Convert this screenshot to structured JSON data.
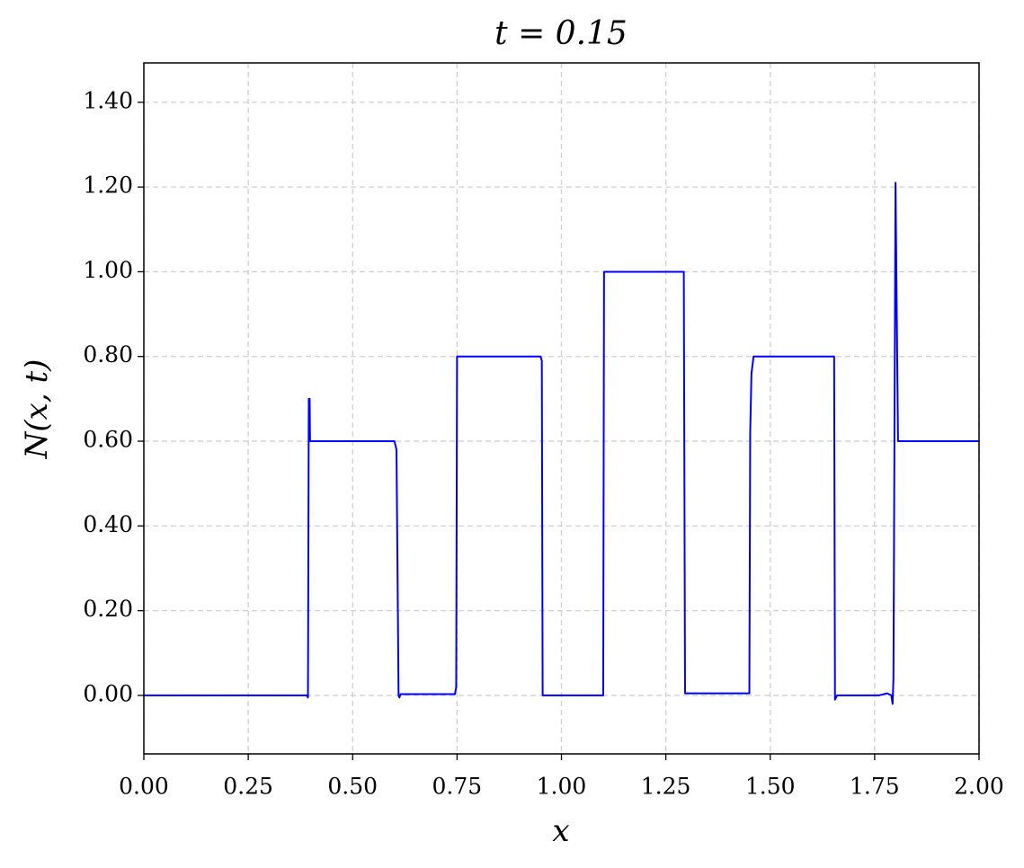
{
  "chart_data": {
    "type": "line",
    "title": "t = 0.15",
    "x_label": "x",
    "y_label": "N(x, t)",
    "x": [
      0,
      0.39,
      0.393,
      0.395,
      0.397,
      0.398,
      0.6,
      0.605,
      0.61,
      0.612,
      0.615,
      0.745,
      0.748,
      0.75,
      0.755,
      0.95,
      0.953,
      0.955,
      1.1,
      1.102,
      1.29,
      1.293,
      1.296,
      1.45,
      1.452,
      1.455,
      1.46,
      1.65,
      1.653,
      1.655,
      1.66,
      1.76,
      1.78,
      1.79,
      1.793,
      1.795,
      1.8,
      1.803,
      1.806,
      2.0
    ],
    "series": [
      {
        "name": "N",
        "color": "#0000ff",
        "values": [
          0,
          0,
          -0.005,
          0.7,
          0.7,
          0.6,
          0.6,
          0.58,
          0.0,
          -0.005,
          0.003,
          0.003,
          0.02,
          0.8,
          0.8,
          0.8,
          0.79,
          0.0,
          0.0,
          1.0,
          1.0,
          1.0,
          0.005,
          0.005,
          0.62,
          0.76,
          0.8,
          0.8,
          0.8,
          -0.01,
          0.0,
          0.0,
          0.005,
          0.0,
          -0.02,
          0.04,
          1.21,
          0.9,
          0.6,
          0.6
        ]
      }
    ],
    "xlim": [
      0,
      2
    ],
    "ylim": [
      -0.138,
      1.493
    ],
    "xticks": [
      {
        "value": 0,
        "label": "0.00"
      },
      {
        "value": 0.25,
        "label": "0.25"
      },
      {
        "value": 0.5,
        "label": "0.50"
      },
      {
        "value": 0.75,
        "label": "0.75"
      },
      {
        "value": 1,
        "label": "1.00"
      },
      {
        "value": 1.25,
        "label": "1.25"
      },
      {
        "value": 1.5,
        "label": "1.50"
      },
      {
        "value": 1.75,
        "label": "1.75"
      },
      {
        "value": 2,
        "label": "2.00"
      }
    ],
    "yticks": [
      {
        "value": 0,
        "label": "0.00"
      },
      {
        "value": 0.2,
        "label": "0.20"
      },
      {
        "value": 0.4,
        "label": "0.40"
      },
      {
        "value": 0.6,
        "label": "0.60"
      },
      {
        "value": 0.8,
        "label": "0.80"
      },
      {
        "value": 1.0,
        "label": "1.00"
      },
      {
        "value": 1.2,
        "label": "1.20"
      },
      {
        "value": 1.4,
        "label": "1.40"
      }
    ],
    "grid": true
  }
}
